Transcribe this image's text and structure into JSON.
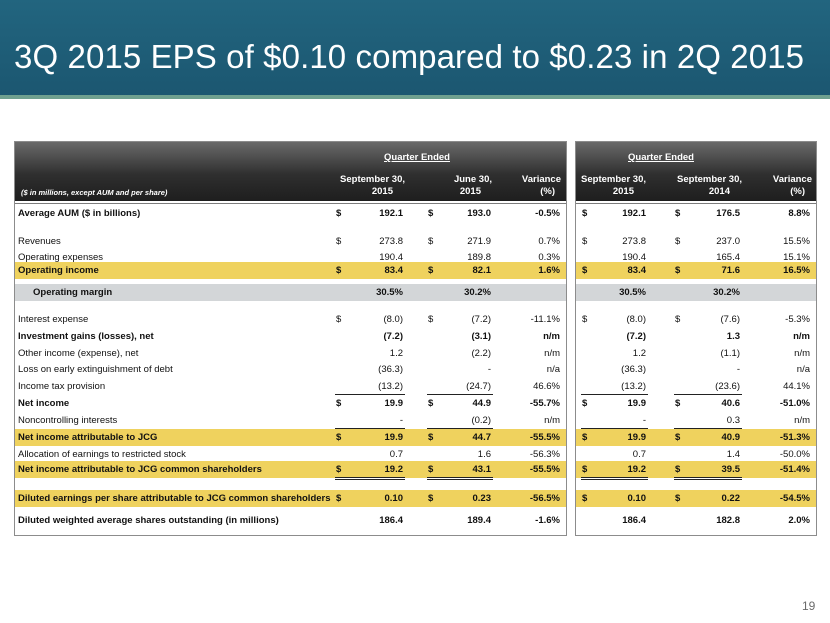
{
  "title": "3Q 2015 EPS of $0.10 compared to $0.23 in 2Q 2015",
  "page_number": "19",
  "colors": {
    "title_bar": "#1f5e7a",
    "highlight_gold": "#efd25e",
    "highlight_grey": "#d3d6d8"
  },
  "table": {
    "units_note": "($ in millions, except AUM and per share)",
    "left_group": "Quarter Ended",
    "right_group": "Quarter Ended",
    "columns": {
      "c1": [
        "September 30,",
        "2015"
      ],
      "c2": [
        "June 30,",
        "2015"
      ],
      "c3": [
        "Variance",
        "(%)"
      ],
      "c4": [
        "September 30,",
        "2015"
      ],
      "c5": [
        "September 30,",
        "2014"
      ],
      "c6": [
        "Variance",
        "(%)"
      ]
    },
    "rows": [
      {
        "label": "Average AUM ($ in billions)",
        "bold": true,
        "cur": true,
        "v": [
          "192.1",
          "193.0",
          "-0.5%",
          "192.1",
          "176.5",
          "8.8%"
        ]
      },
      {
        "label": "Revenues",
        "bold": false,
        "cur": true,
        "v": [
          "273.8",
          "271.9",
          "0.7%",
          "273.8",
          "237.0",
          "15.5%"
        ]
      },
      {
        "label": "Operating expenses",
        "bold": false,
        "cur": false,
        "v": [
          "190.4",
          "189.8",
          "0.3%",
          "190.4",
          "165.4",
          "15.1%"
        ]
      },
      {
        "label": "Operating income",
        "bold": true,
        "cur": true,
        "v": [
          "83.4",
          "82.1",
          "1.6%",
          "83.4",
          "71.6",
          "16.5%"
        ]
      },
      {
        "label": "Operating margin",
        "bold": true,
        "cur": false,
        "v": [
          "30.5%",
          "30.2%",
          "",
          "30.5%",
          "30.2%",
          ""
        ]
      },
      {
        "label": "Interest expense",
        "bold": false,
        "cur": true,
        "v": [
          "(8.0)",
          "(7.2)",
          "-11.1%",
          "(8.0)",
          "(7.6)",
          "-5.3%"
        ]
      },
      {
        "label": "Investment gains (losses), net",
        "bold": true,
        "cur": false,
        "v": [
          "(7.2)",
          "(3.1)",
          "n/m",
          "(7.2)",
          "1.3",
          "n/m"
        ]
      },
      {
        "label": "Other income (expense), net",
        "bold": false,
        "cur": false,
        "v": [
          "1.2",
          "(2.2)",
          "n/m",
          "1.2",
          "(1.1)",
          "n/m"
        ]
      },
      {
        "label": "Loss on early extinguishment of debt",
        "bold": false,
        "cur": false,
        "v": [
          "(36.3)",
          "-",
          "n/a",
          "(36.3)",
          "-",
          "n/a"
        ]
      },
      {
        "label": "Income tax provision",
        "bold": false,
        "cur": false,
        "v": [
          "(13.2)",
          "(24.7)",
          "46.6%",
          "(13.2)",
          "(23.6)",
          "44.1%"
        ]
      },
      {
        "label": "Net income",
        "bold": true,
        "cur": true,
        "v": [
          "19.9",
          "44.9",
          "-55.7%",
          "19.9",
          "40.6",
          "-51.0%"
        ]
      },
      {
        "label": "Noncontrolling interests",
        "bold": false,
        "cur": false,
        "v": [
          "-",
          "(0.2)",
          "n/m",
          "-",
          "0.3",
          "n/m"
        ]
      },
      {
        "label": "Net income attributable to JCG",
        "bold": true,
        "cur": true,
        "v": [
          "19.9",
          "44.7",
          "-55.5%",
          "19.9",
          "40.9",
          "-51.3%"
        ]
      },
      {
        "label": "Allocation of earnings to restricted stock",
        "bold": false,
        "cur": false,
        "v": [
          "0.7",
          "1.6",
          "-56.3%",
          "0.7",
          "1.4",
          "-50.0%"
        ]
      },
      {
        "label": "Net income attributable to JCG common shareholders",
        "bold": true,
        "cur": true,
        "v": [
          "19.2",
          "43.1",
          "-55.5%",
          "19.2",
          "39.5",
          "-51.4%"
        ]
      },
      {
        "label": "Diluted earnings per share attributable to JCG common shareholders",
        "bold": true,
        "cur": true,
        "v": [
          "0.10",
          "0.23",
          "-56.5%",
          "0.10",
          "0.22",
          "-54.5%"
        ]
      },
      {
        "label": "Diluted weighted average shares outstanding (in millions)",
        "bold": true,
        "cur": false,
        "v": [
          "186.4",
          "189.4",
          "-1.6%",
          "186.4",
          "182.8",
          "2.0%"
        ]
      }
    ],
    "currency_symbol": "$"
  }
}
